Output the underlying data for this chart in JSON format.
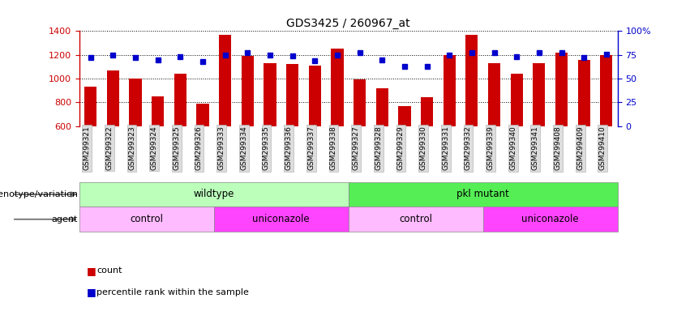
{
  "title": "GDS3425 / 260967_at",
  "samples": [
    "GSM299321",
    "GSM299322",
    "GSM299323",
    "GSM299324",
    "GSM299325",
    "GSM299326",
    "GSM299333",
    "GSM299334",
    "GSM299335",
    "GSM299336",
    "GSM299337",
    "GSM299338",
    "GSM299327",
    "GSM299328",
    "GSM299329",
    "GSM299330",
    "GSM299331",
    "GSM299332",
    "GSM299339",
    "GSM299340",
    "GSM299341",
    "GSM299408",
    "GSM299409",
    "GSM299410"
  ],
  "counts": [
    930,
    1070,
    1000,
    850,
    1040,
    790,
    1370,
    1190,
    1130,
    1120,
    1110,
    1250,
    990,
    920,
    765,
    845,
    1200,
    1370,
    1130,
    1040,
    1130,
    1220,
    1160,
    1200
  ],
  "percentile": [
    72,
    75,
    72,
    70,
    73,
    68,
    75,
    77,
    75,
    74,
    69,
    75,
    77,
    70,
    63,
    63,
    75,
    77,
    77,
    73,
    77,
    77,
    72,
    76
  ],
  "ylim_left": [
    600,
    1400
  ],
  "ylim_right": [
    0,
    100
  ],
  "yticks_left": [
    600,
    800,
    1000,
    1200,
    1400
  ],
  "yticks_right": [
    0,
    25,
    50,
    75,
    100
  ],
  "ytick_right_labels": [
    "0",
    "25",
    "50",
    "75",
    "100%"
  ],
  "bar_color": "#cc0000",
  "dot_color": "#0000cc",
  "plot_bg": "#ffffff",
  "genotype_groups": [
    {
      "label": "wildtype",
      "start": 0,
      "end": 12,
      "color": "#bbffbb"
    },
    {
      "label": "pkl mutant",
      "start": 12,
      "end": 24,
      "color": "#55ee55"
    }
  ],
  "agent_groups": [
    {
      "label": "control",
      "start": 0,
      "end": 6,
      "color": "#ffbbff"
    },
    {
      "label": "uniconazole",
      "start": 6,
      "end": 12,
      "color": "#ff44ff"
    },
    {
      "label": "control",
      "start": 12,
      "end": 18,
      "color": "#ffbbff"
    },
    {
      "label": "uniconazole",
      "start": 18,
      "end": 24,
      "color": "#ff44ff"
    }
  ],
  "legend_count_label": "count",
  "legend_pct_label": "percentile rank within the sample",
  "legend_count_color": "#cc0000",
  "legend_pct_color": "#0000cc",
  "left_label_genotype": "genotype/variation",
  "left_label_agent": "agent"
}
